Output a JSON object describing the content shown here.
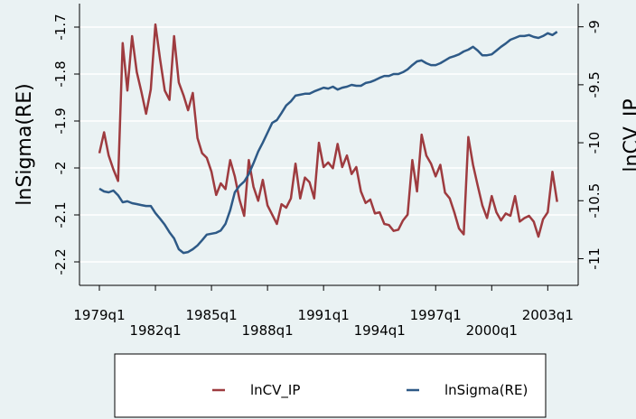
{
  "chart_data": {
    "type": "line",
    "x": [
      "1979q1",
      "1979q2",
      "1979q3",
      "1979q4",
      "1980q1",
      "1980q2",
      "1980q3",
      "1980q4",
      "1981q1",
      "1981q2",
      "1981q3",
      "1981q4",
      "1982q1",
      "1982q2",
      "1982q3",
      "1982q4",
      "1983q1",
      "1983q2",
      "1983q3",
      "1983q4",
      "1984q1",
      "1984q2",
      "1984q3",
      "1984q4",
      "1985q1",
      "1985q2",
      "1985q3",
      "1985q4",
      "1986q1",
      "1986q2",
      "1986q3",
      "1986q4",
      "1987q1",
      "1987q2",
      "1987q3",
      "1987q4",
      "1988q1",
      "1988q2",
      "1988q3",
      "1988q4",
      "1989q1",
      "1989q2",
      "1989q3",
      "1989q4",
      "1990q1",
      "1990q2",
      "1990q3",
      "1990q4",
      "1991q1",
      "1991q2",
      "1991q3",
      "1991q4",
      "1992q1",
      "1992q2",
      "1992q3",
      "1992q4",
      "1993q1",
      "1993q2",
      "1993q3",
      "1993q4",
      "1994q1",
      "1994q2",
      "1994q3",
      "1994q4",
      "1995q1",
      "1995q2",
      "1995q3",
      "1995q4",
      "1996q1",
      "1996q2",
      "1996q3",
      "1996q4",
      "1997q1",
      "1997q2",
      "1997q3",
      "1997q4",
      "1998q1",
      "1998q2",
      "1998q3",
      "1998q4",
      "1999q1",
      "1999q2",
      "1999q3",
      "1999q4",
      "2000q1",
      "2000q2",
      "2000q3",
      "2000q4",
      "2001q1",
      "2001q2",
      "2001q3",
      "2001q4",
      "2002q1",
      "2002q2",
      "2002q3",
      "2002q4",
      "2003q1",
      "2003q2",
      "2003q3"
    ],
    "xticks": [
      "1979q1",
      "1982q1",
      "1985q1",
      "1988q1",
      "1991q1",
      "1994q1",
      "1997q1",
      "2000q1",
      "2003q1"
    ],
    "ylabel": "lnSigma(RE)",
    "y2label": "lnCV_IP",
    "ylim": [
      -2.25,
      -1.65
    ],
    "yticks": [
      -2.2,
      -2.1,
      -2,
      -1.9,
      -1.8,
      -1.7
    ],
    "y2lim": [
      -11.23,
      -8.8
    ],
    "y2ticks": [
      -11,
      -10.5,
      -10,
      -9.5,
      -9
    ],
    "grid": true,
    "series": [
      {
        "name": "lnCV_IP",
        "color": "#9e3b3f",
        "axis": "y2",
        "values": [
          -10.09,
          -9.91,
          -10.11,
          -10.23,
          -10.33,
          -9.14,
          -9.55,
          -9.08,
          -9.39,
          -9.56,
          -9.75,
          -9.54,
          -8.98,
          -9.28,
          -9.55,
          -9.63,
          -9.08,
          -9.48,
          -9.59,
          -9.72,
          -9.57,
          -9.96,
          -10.09,
          -10.13,
          -10.25,
          -10.45,
          -10.35,
          -10.4,
          -10.15,
          -10.29,
          -10.49,
          -10.63,
          -10.15,
          -10.38,
          -10.5,
          -10.32,
          -10.54,
          -10.62,
          -10.7,
          -10.53,
          -10.56,
          -10.48,
          -10.18,
          -10.48,
          -10.3,
          -10.34,
          -10.48,
          -10,
          -10.21,
          -10.17,
          -10.22,
          -10.01,
          -10.21,
          -10.11,
          -10.27,
          -10.21,
          -10.42,
          -10.52,
          -10.49,
          -10.61,
          -10.6,
          -10.7,
          -10.71,
          -10.76,
          -10.75,
          -10.67,
          -10.62,
          -10.15,
          -10.42,
          -9.93,
          -10.11,
          -10.18,
          -10.29,
          -10.19,
          -10.43,
          -10.48,
          -10.6,
          -10.74,
          -10.79,
          -9.95,
          -10.19,
          -10.37,
          -10.54,
          -10.65,
          -10.46,
          -10.6,
          -10.67,
          -10.61,
          -10.63,
          -10.46,
          -10.68,
          -10.65,
          -10.63,
          -10.68,
          -10.81,
          -10.66,
          -10.6,
          -10.25,
          -10.51
        ]
      },
      {
        "name": "lnSigma(RE)",
        "color": "#2e5a87",
        "values": [
          -2.044,
          -2.05,
          -2.052,
          -2.048,
          -2.058,
          -2.073,
          -2.071,
          -2.075,
          -2.077,
          -2.079,
          -2.081,
          -2.081,
          -2.096,
          -2.108,
          -2.121,
          -2.137,
          -2.15,
          -2.173,
          -2.181,
          -2.179,
          -2.173,
          -2.165,
          -2.154,
          -2.142,
          -2.14,
          -2.138,
          -2.133,
          -2.119,
          -2.09,
          -2.052,
          -2.038,
          -2.029,
          -2.013,
          -1.99,
          -1.965,
          -1.946,
          -1.925,
          -1.904,
          -1.898,
          -1.883,
          -1.867,
          -1.858,
          -1.846,
          -1.844,
          -1.842,
          -1.842,
          -1.837,
          -1.833,
          -1.829,
          -1.831,
          -1.827,
          -1.833,
          -1.829,
          -1.827,
          -1.823,
          -1.825,
          -1.825,
          -1.819,
          -1.817,
          -1.813,
          -1.808,
          -1.804,
          -1.804,
          -1.8,
          -1.8,
          -1.796,
          -1.79,
          -1.781,
          -1.773,
          -1.771,
          -1.777,
          -1.781,
          -1.781,
          -1.777,
          -1.771,
          -1.765,
          -1.762,
          -1.758,
          -1.752,
          -1.748,
          -1.742,
          -1.75,
          -1.76,
          -1.76,
          -1.758,
          -1.75,
          -1.742,
          -1.735,
          -1.727,
          -1.723,
          -1.719,
          -1.719,
          -1.717,
          -1.721,
          -1.723,
          -1.719,
          -1.713,
          -1.717,
          -1.71
        ]
      }
    ]
  }
}
